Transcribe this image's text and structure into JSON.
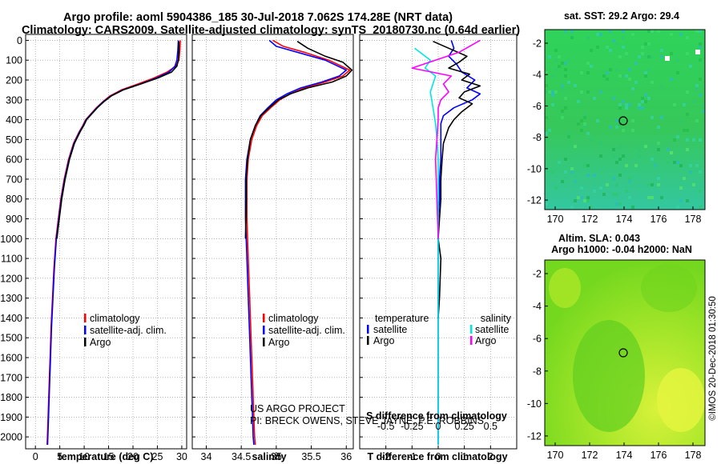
{
  "title": {
    "line1": "Argo profile: aoml 5904386_185 30-Jul-2018 7.062S 174.28E (NRT data)",
    "line2": "Climatology: CARS2009. Satellite-adjusted climatology: synTS_20180730.nc (0.64d earlier)"
  },
  "colors": {
    "climatology": "#ff0000",
    "satellite": "#0000ff",
    "argo": "#000000",
    "sal_satellite": "#00e5e5",
    "sal_argo": "#ff00ff"
  },
  "depth_axis": {
    "ticks": [
      0,
      100,
      200,
      300,
      400,
      500,
      600,
      700,
      800,
      900,
      1000,
      1100,
      1200,
      1300,
      1400,
      1500,
      1600,
      1700,
      1800,
      1900,
      2000
    ],
    "ylim": [
      2060,
      -30
    ]
  },
  "chart_data": [
    {
      "id": "temperature",
      "type": "line",
      "xlabel": "temperature (deg C)",
      "xlim": [
        -2,
        31
      ],
      "xticks": [
        0,
        5,
        10,
        15,
        20,
        25,
        30
      ],
      "legend": [
        "climatology",
        "satellite-adj. clim.",
        "Argo"
      ],
      "series": [
        {
          "name": "climatology",
          "color": "#ff0000",
          "x": [
            29.7,
            29.6,
            29.4,
            28.8,
            27.0,
            24.3,
            21.0,
            17.6,
            15.3,
            13.8,
            12.5,
            11.4,
            10.3,
            9.7,
            9.0,
            7.8,
            6.8,
            5.9,
            5.2,
            4.7,
            4.2,
            3.8,
            3.5,
            3.2,
            3.0,
            2.8,
            2.6,
            2.4
          ],
          "y": [
            0,
            50,
            100,
            130,
            160,
            190,
            220,
            250,
            280,
            310,
            340,
            370,
            400,
            430,
            460,
            520,
            600,
            700,
            800,
            900,
            1000,
            1150,
            1300,
            1450,
            1600,
            1750,
            1900,
            2040
          ]
        },
        {
          "name": "satellite-adj. clim.",
          "color": "#0000ff",
          "x": [
            29.3,
            29.2,
            29.0,
            28.6,
            27.4,
            24.8,
            21.5,
            17.9,
            15.5,
            13.9,
            12.6,
            11.5,
            10.4,
            9.8,
            9.1,
            7.9,
            6.9,
            6.0,
            5.3,
            4.8,
            4.3,
            3.9,
            3.6,
            3.3,
            3.1,
            2.9,
            2.7,
            2.5
          ],
          "y": [
            0,
            50,
            100,
            130,
            160,
            190,
            220,
            250,
            280,
            310,
            340,
            370,
            400,
            430,
            460,
            520,
            600,
            700,
            800,
            900,
            1000,
            1150,
            1300,
            1450,
            1600,
            1750,
            1900,
            2040
          ]
        },
        {
          "name": "Argo",
          "color": "#000000",
          "x": [
            29.4,
            29.4,
            29.3,
            29.0,
            27.9,
            25.1,
            21.6,
            18.0,
            15.6,
            14.0,
            12.7,
            11.6,
            10.5,
            9.9,
            9.2,
            8.0,
            7.0,
            6.1,
            5.4,
            4.9,
            4.4
          ],
          "y": [
            5,
            50,
            100,
            130,
            160,
            190,
            220,
            250,
            280,
            310,
            340,
            370,
            400,
            430,
            460,
            520,
            600,
            700,
            800,
            900,
            1000
          ]
        }
      ]
    },
    {
      "id": "salinity",
      "type": "line",
      "xlabel": "salinity",
      "xlim": [
        33.8,
        36.1
      ],
      "xticks": [
        34,
        34.5,
        35,
        35.5,
        36
      ],
      "legend": [
        "climatology",
        "satellite-adj. clim.",
        "Argo"
      ],
      "series": [
        {
          "name": "climatology",
          "color": "#ff0000",
          "x": [
            34.95,
            35.1,
            35.4,
            35.75,
            36.05,
            35.95,
            35.7,
            35.4,
            35.2,
            35.05,
            34.92,
            34.8,
            34.72,
            34.65,
            34.6,
            34.58,
            34.58,
            34.58,
            34.59,
            34.6,
            34.62,
            34.64,
            34.66,
            34.68,
            34.69,
            34.7
          ],
          "y": [
            0,
            30,
            60,
            100,
            150,
            180,
            210,
            240,
            270,
            300,
            340,
            380,
            430,
            500,
            600,
            700,
            800,
            900,
            1000,
            1100,
            1300,
            1500,
            1700,
            1900,
            2000,
            2040
          ]
        },
        {
          "name": "satellite-adj. clim.",
          "color": "#0000ff",
          "x": [
            34.9,
            35.0,
            35.3,
            35.7,
            36.0,
            35.9,
            35.65,
            35.35,
            35.15,
            35.0,
            34.88,
            34.77,
            34.7,
            34.63,
            34.58,
            34.56,
            34.56,
            34.56,
            34.57,
            34.58,
            34.6,
            34.62,
            34.64,
            34.66,
            34.67,
            34.68
          ],
          "y": [
            0,
            30,
            60,
            100,
            150,
            180,
            210,
            240,
            270,
            300,
            340,
            380,
            430,
            500,
            600,
            700,
            800,
            900,
            1000,
            1100,
            1300,
            1500,
            1700,
            1900,
            2000,
            2040
          ]
        },
        {
          "name": "Argo",
          "color": "#000000",
          "x": [
            35.3,
            35.45,
            35.7,
            35.95,
            36.08,
            36.0,
            35.8,
            35.45,
            35.2,
            35.03,
            34.9,
            34.78,
            34.7,
            34.63,
            34.59,
            34.57,
            34.57,
            34.56
          ],
          "y": [
            5,
            40,
            80,
            110,
            150,
            180,
            210,
            240,
            270,
            300,
            340,
            380,
            430,
            500,
            600,
            700,
            800,
            1000
          ]
        }
      ]
    },
    {
      "id": "difference",
      "type": "line",
      "xlabel": "T difference from climatology",
      "xlabel_top": "S difference from climatology",
      "xlim": [
        -3,
        3
      ],
      "xticks": [
        -2,
        -1,
        0,
        1,
        2
      ],
      "xticks_top": [
        "-0.5",
        "-0.25",
        "0",
        "0.25",
        "0.5"
      ],
      "legend_left_title": "temperature",
      "legend_right_title": "salinity",
      "legend_left": [
        "satellite",
        "Argo"
      ],
      "legend_right": [
        "satellite",
        "Argo"
      ],
      "series": [
        {
          "name": "T satellite",
          "color": "#0000ff",
          "x": [
            0.5,
            0.6,
            0.4,
            0.7,
            0.9,
            1.4,
            1.1,
            1.6,
            1.3,
            0.6,
            0.2,
            0.1,
            0.1,
            0.1,
            0.05,
            0.05,
            0.0,
            0.0,
            0.0,
            0.0,
            0.0,
            0.0,
            0.0
          ],
          "y": [
            0,
            40,
            80,
            120,
            160,
            200,
            240,
            270,
            300,
            340,
            380,
            420,
            500,
            600,
            700,
            800,
            900,
            1000,
            1200,
            1400,
            1600,
            1800,
            2040
          ]
        },
        {
          "name": "T Argo",
          "color": "#000000",
          "x": [
            -0.2,
            1.1,
            0.8,
            0.4,
            1.2,
            0.9,
            1.6,
            1.0,
            0.8,
            1.3,
            0.9,
            0.6,
            0.4,
            0.3,
            0.2,
            0.15,
            0.1,
            0.1,
            0.05,
            0.0,
            0.1,
            0.05,
            0.0
          ],
          "y": [
            5,
            80,
            110,
            140,
            170,
            200,
            230,
            260,
            290,
            320,
            360,
            400,
            440,
            480,
            520,
            600,
            700,
            800,
            900,
            1000,
            1100,
            1300,
            1400
          ]
        },
        {
          "name": "S satellite",
          "color": "#00e5e5",
          "x": [
            -0.9,
            -0.3,
            -0.5,
            -0.1,
            -0.3,
            -0.2,
            -0.1,
            -0.05,
            0.0,
            0.0,
            0.0,
            0.0,
            0.0,
            0.0,
            0.0,
            0.0
          ],
          "y": [
            40,
            100,
            140,
            180,
            260,
            340,
            420,
            500,
            600,
            800,
            1000,
            1200,
            1400,
            1600,
            1800,
            2040
          ]
        },
        {
          "name": "S Argo",
          "color": "#ff00ff",
          "x": [
            1.6,
            0.8,
            -1.0,
            0.5,
            0.2,
            0.4,
            0.1,
            0.0,
            0.0,
            -0.1,
            0.0
          ],
          "y": [
            0,
            60,
            140,
            180,
            220,
            260,
            300,
            340,
            400,
            600,
            1000
          ]
        }
      ]
    }
  ],
  "maps": [
    {
      "id": "sst",
      "title": "sat. SST: 29.2 Argo: 29.4",
      "xticks": [
        "170",
        "172",
        "174",
        "176",
        "178"
      ],
      "yticks": [
        "-2",
        "-4",
        "-6",
        "-8",
        "-10",
        "-12"
      ],
      "marker": {
        "lon": 174.28,
        "lat": -7.06
      }
    },
    {
      "id": "sla",
      "title_line1": "Altim. SLA: 0.043",
      "title_line2": "Argo h1000: -0.04 h2000: NaN",
      "xticks": [
        "170",
        "172",
        "174",
        "176",
        "178"
      ],
      "yticks": [
        "-2",
        "-4",
        "-6",
        "-8",
        "-10",
        "-12"
      ],
      "marker": {
        "lon": 174.28,
        "lat": -7.06
      }
    }
  ],
  "credit": {
    "line1": "US ARGO PROJECT",
    "line2": "PI: BRECK OWENS, STEVE JAYNE, P.E. ROBBINS"
  },
  "watermark": "©IMOS 20-Dec-2018 01:30:50"
}
